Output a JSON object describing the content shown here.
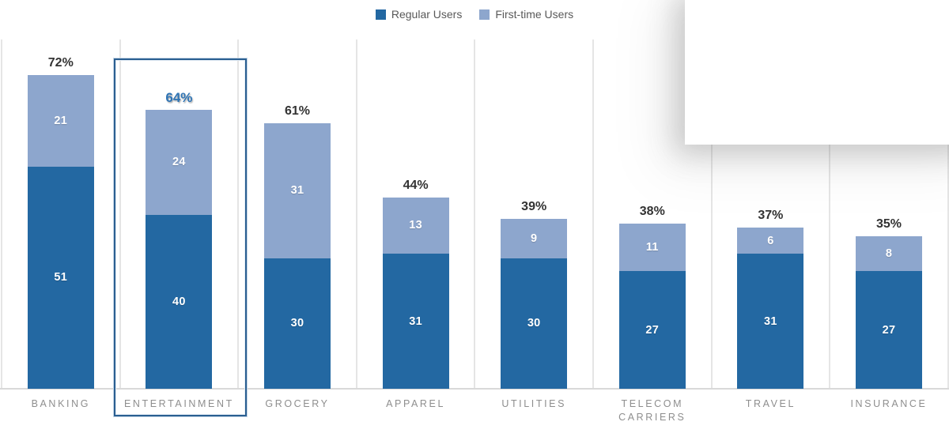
{
  "chart_data": {
    "type": "bar",
    "stacked": true,
    "orientation": "vertical",
    "categories": [
      "BANKING",
      "ENTERTAINMENT",
      "GROCERY",
      "APPAREL",
      "UTILITIES",
      "TELECOM CARRIERS",
      "TRAVEL",
      "INSURANCE"
    ],
    "series": [
      {
        "name": "Regular Users",
        "color": "#2368A2",
        "values": [
          51,
          40,
          30,
          31,
          30,
          27,
          31,
          27
        ]
      },
      {
        "name": "First-time Users",
        "color": "#8DA6CD",
        "values": [
          21,
          24,
          31,
          13,
          9,
          11,
          6,
          8
        ]
      }
    ],
    "total_labels": [
      "72%",
      "64%",
      "61%",
      "44%",
      "39%",
      "38%",
      "37%",
      "35%"
    ],
    "totals": [
      72,
      64,
      61,
      44,
      39,
      38,
      37,
      35
    ],
    "highlighted_category": "ENTERTAINMENT",
    "highlighted_total_label": "64%",
    "legend_position": "top-center",
    "grid": "vertical-category-separators-only",
    "value_axis_visible": false,
    "ylim": [
      0,
      80
    ]
  },
  "colors": {
    "regular_users": "#2368A2",
    "first_time_users": "#8DA6CD",
    "highlight_label": "#2E74B5",
    "total_label": "#333333",
    "category_label": "#8E8E8E",
    "legend_text": "#595959",
    "gridline": "#E5E5E5",
    "axis_line": "#D9D9D9",
    "selection_border": "#2B5F91"
  },
  "icons": {
    "legend_swatch_regular": "square-swatch",
    "legend_swatch_first_time": "square-swatch"
  }
}
